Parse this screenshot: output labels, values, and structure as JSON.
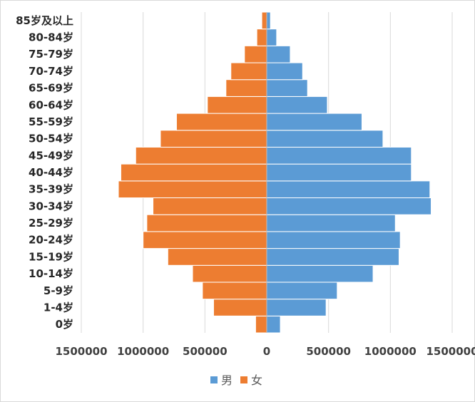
{
  "chart_data": {
    "type": "bar",
    "orientation": "horizontal",
    "subtype": "population-pyramid",
    "categories": [
      "0岁",
      "1-4岁",
      "5-9岁",
      "10-14岁",
      "15-19岁",
      "20-24岁",
      "25-29岁",
      "30-34岁",
      "35-39岁",
      "40-44岁",
      "45-49岁",
      "50-54岁",
      "55-59岁",
      "60-64岁",
      "65-69岁",
      "70-74岁",
      "75-79岁",
      "80-84岁",
      "85岁及以上"
    ],
    "series": [
      {
        "name": "男",
        "color": "#5b9bd5",
        "side": "right",
        "values": [
          110000,
          480000,
          570000,
          860000,
          1070000,
          1080000,
          1040000,
          1330000,
          1320000,
          1170000,
          1170000,
          940000,
          770000,
          490000,
          330000,
          290000,
          190000,
          80000,
          30000
        ]
      },
      {
        "name": "女",
        "color": "#ed7d31",
        "side": "left",
        "values": [
          90000,
          430000,
          520000,
          600000,
          800000,
          1000000,
          970000,
          920000,
          1200000,
          1180000,
          1060000,
          860000,
          730000,
          480000,
          330000,
          290000,
          180000,
          80000,
          40000
        ]
      }
    ],
    "xlim": [
      -1500000,
      1500000
    ],
    "x_ticks": [
      -1500000,
      -1000000,
      -500000,
      0,
      500000,
      1000000,
      1500000
    ],
    "x_tick_labels": [
      "1500000",
      "1000000",
      "500000",
      "0",
      "500000",
      "1000000",
      "1500000"
    ],
    "grid": "vertical",
    "legend": "bottom-center",
    "title": "",
    "xlabel": "",
    "ylabel": ""
  }
}
